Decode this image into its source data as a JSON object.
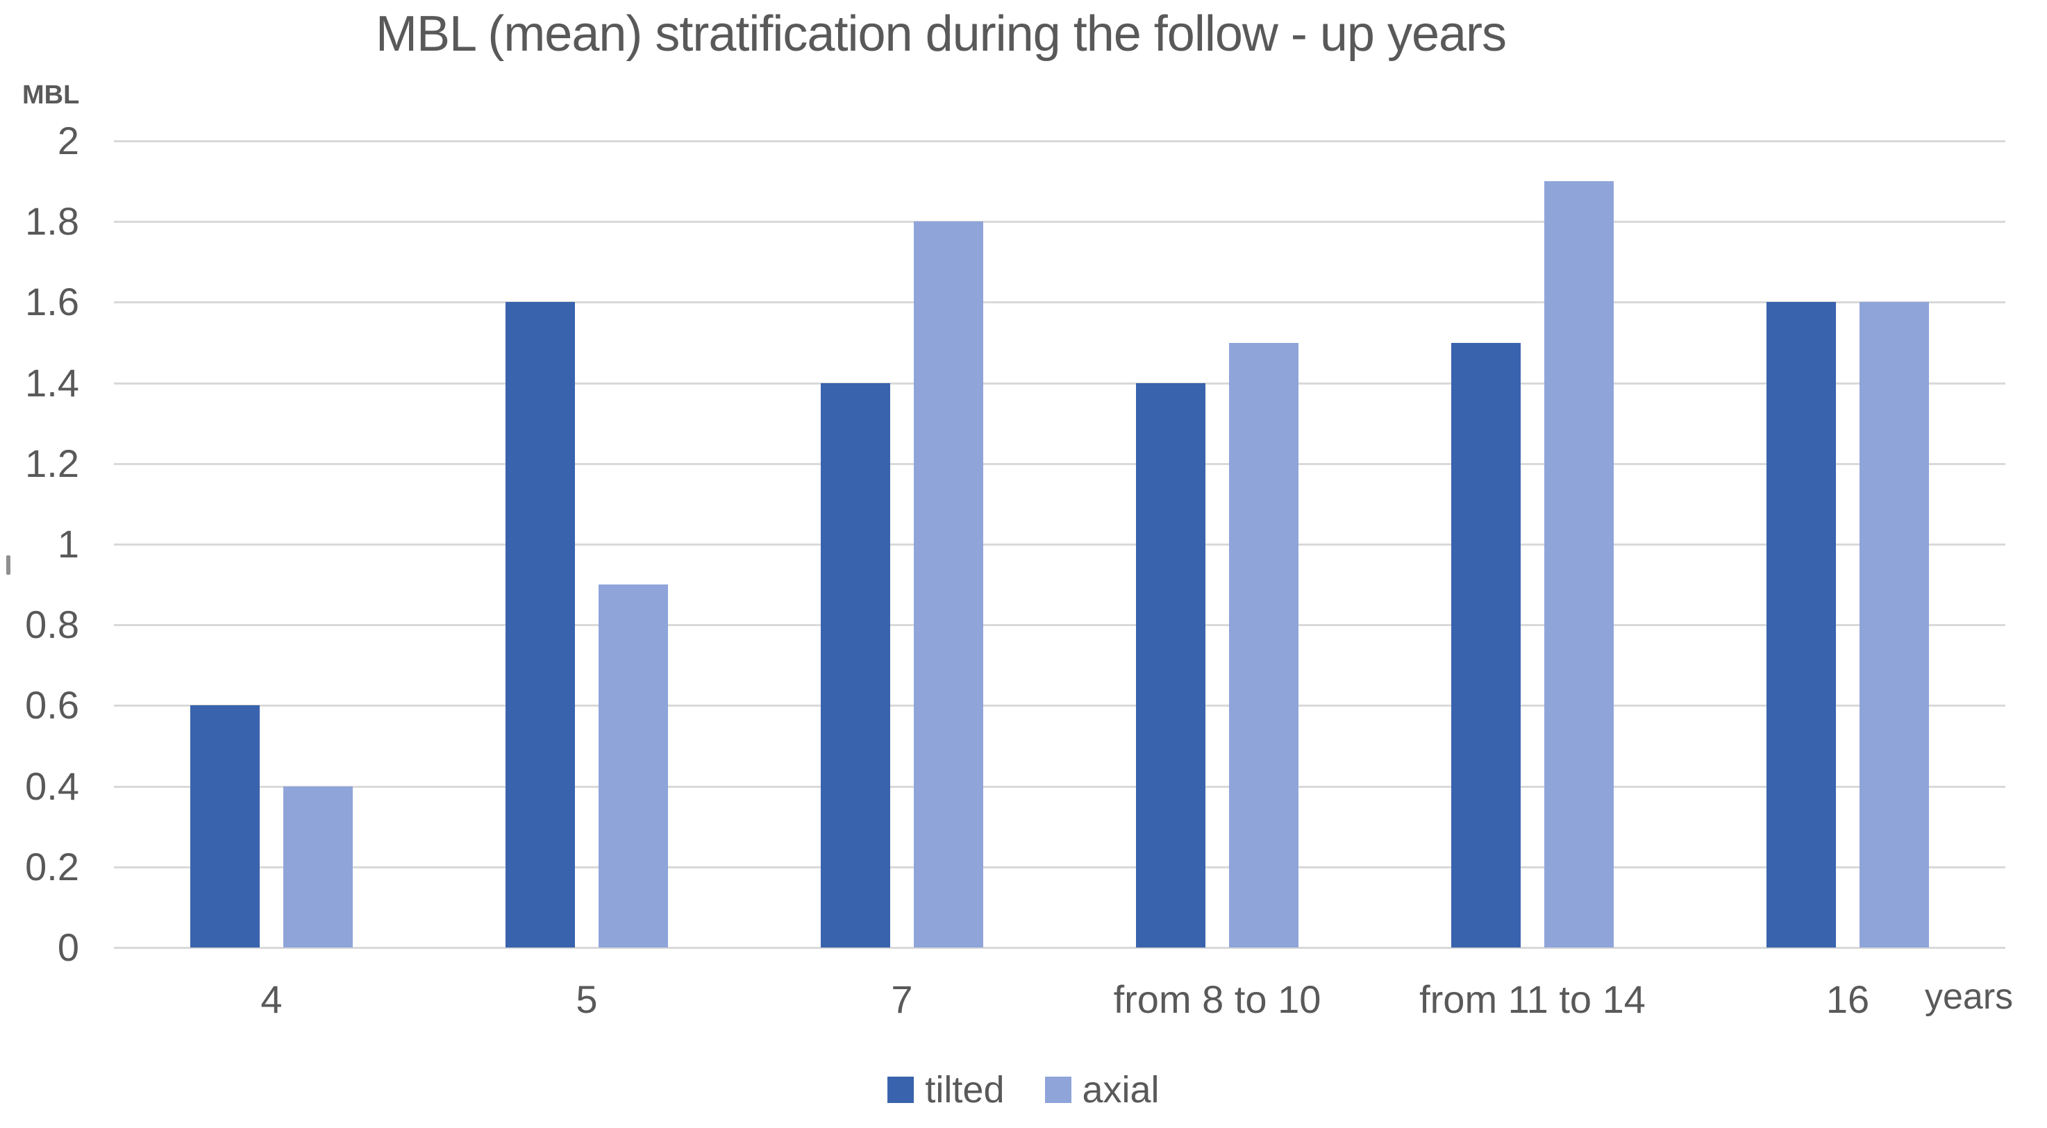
{
  "chart_data": {
    "type": "bar",
    "title": "MBL (mean) stratification during the follow - up years",
    "y_axis_label": "MBL",
    "x_axis_label": "years",
    "categories": [
      "4",
      "5",
      "7",
      "from 8 to 10",
      "from 11 to 14",
      "16"
    ],
    "series": [
      {
        "name": "tilted",
        "color": "#3a63ad",
        "values": [
          0.6,
          1.6,
          1.4,
          1.4,
          1.5,
          1.6
        ]
      },
      {
        "name": "axial",
        "color": "#8fa4d9",
        "values": [
          0.4,
          0.9,
          1.8,
          1.5,
          1.9,
          1.6
        ]
      }
    ],
    "ylim": [
      0,
      2
    ],
    "ytick_labels": [
      "2",
      "1.8",
      "1.6",
      "1.4",
      "1.2",
      "1",
      "0.8",
      "0.6",
      "0.4",
      "0.2",
      "0"
    ],
    "grid": "horizontal-only",
    "legend_position": "bottom-center",
    "colors": {
      "gridline": "#d9d9d9",
      "text": "#595959",
      "background": "#ffffff"
    }
  }
}
